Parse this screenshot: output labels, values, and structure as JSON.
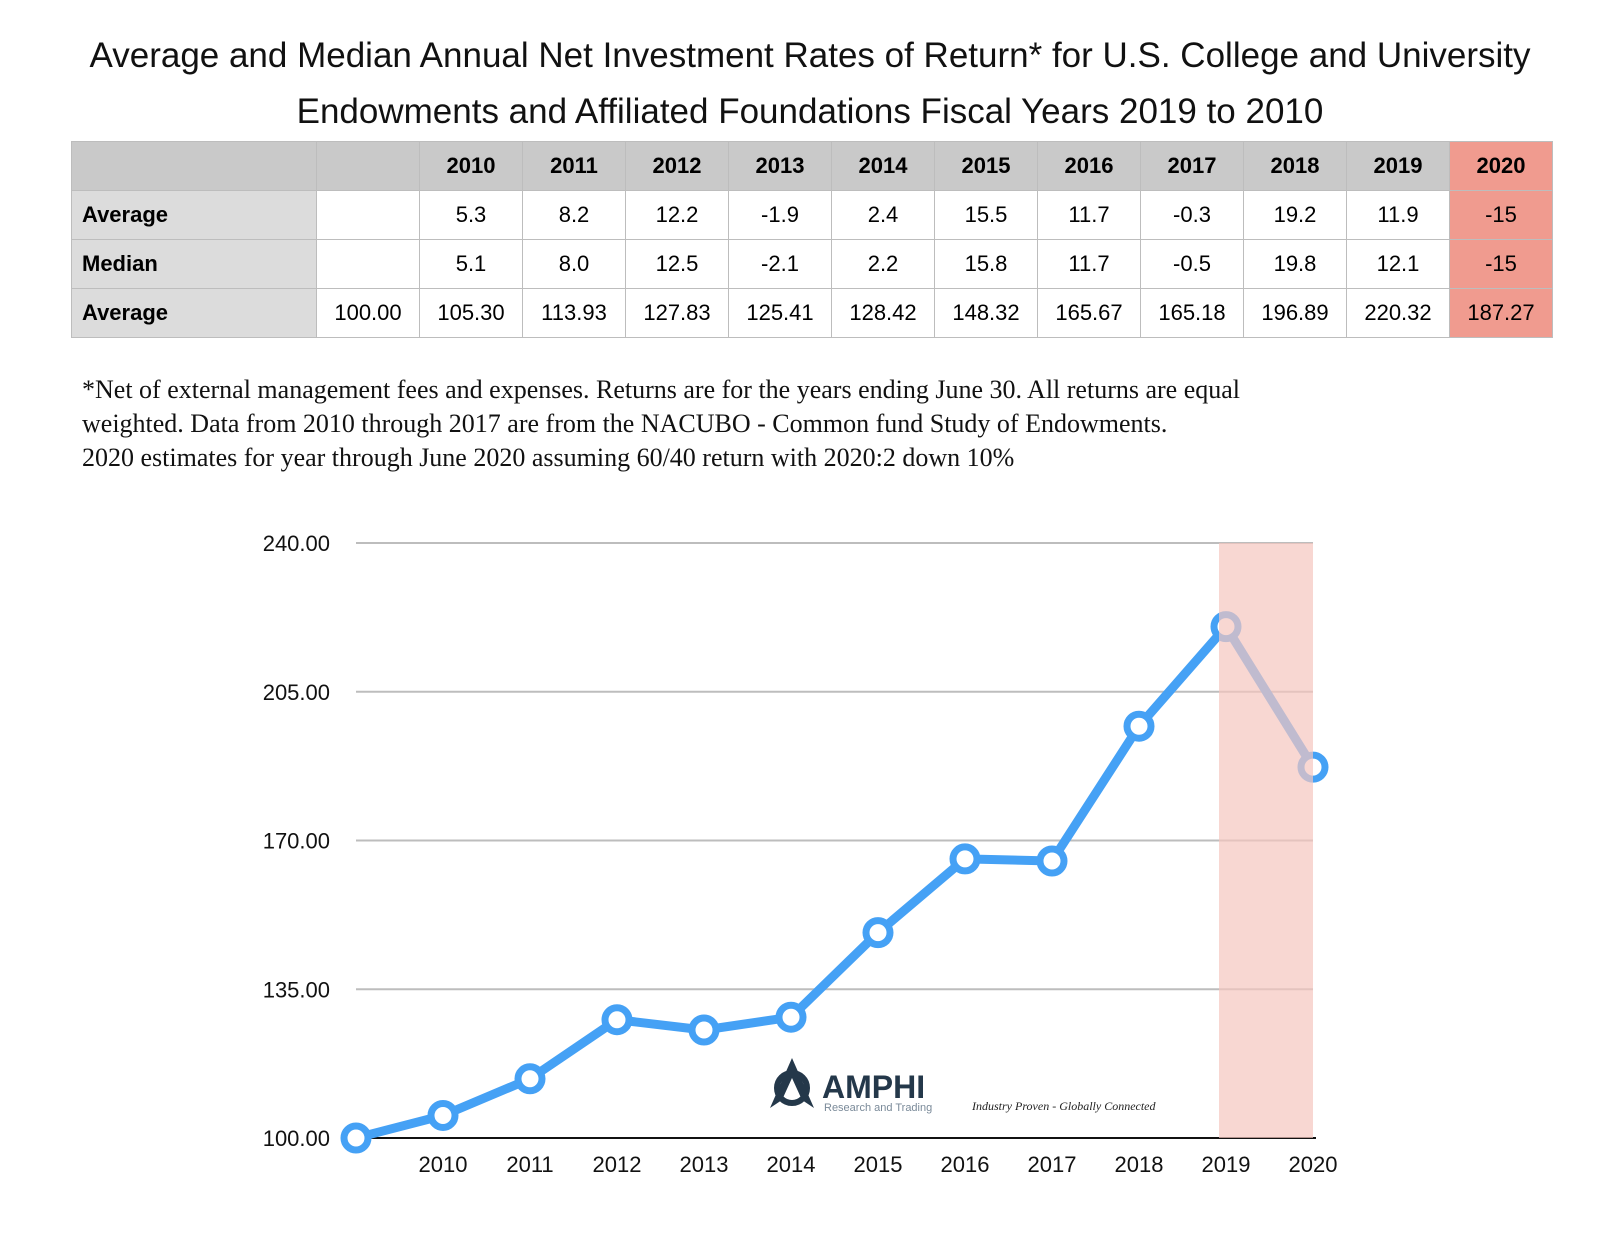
{
  "title": "Average and Median Annual Net Investment Rates of Return* for U.S. College and University Endowments and Affiliated Foundations Fiscal Years 2019 to 2010",
  "table": {
    "header": [
      "",
      "",
      "2010",
      "2011",
      "2012",
      "2013",
      "2014",
      "2015",
      "2016",
      "2017",
      "2018",
      "2019",
      "2020"
    ],
    "rows": [
      {
        "label": "Average",
        "cells": [
          "",
          "5.3",
          "8.2",
          "12.2",
          "-1.9",
          "2.4",
          "15.5",
          "11.7",
          "-0.3",
          "19.2",
          "11.9",
          "-15"
        ]
      },
      {
        "label": "Median",
        "cells": [
          "",
          "5.1",
          "8.0",
          "12.5",
          "-2.1",
          "2.2",
          "15.8",
          "11.7",
          "-0.5",
          "19.8",
          "12.1",
          "-15"
        ]
      },
      {
        "label": "Average",
        "cells": [
          "100.00",
          "105.30",
          "113.93",
          "127.83",
          "125.41",
          "128.42",
          "148.32",
          "165.67",
          "165.18",
          "196.89",
          "220.32",
          "187.27"
        ]
      }
    ],
    "highlight_color": "#f09b8f"
  },
  "notes": [
    "*Net of external management fees and expenses. Returns are for the years ending June 30. All returns are equal weighted. Data from 2010 through 2017 are from the NACUBO - Common fund Study of Endowments.",
    "2020 estimates for year through June 2020 assuming 60/40 return with 2020:2  down 10%"
  ],
  "chart_data": {
    "type": "line",
    "categories": [
      "",
      "2010",
      "2011",
      "2012",
      "2013",
      "2014",
      "2015",
      "2016",
      "2017",
      "2018",
      "2019",
      "2020"
    ],
    "values": [
      100.0,
      105.3,
      113.93,
      127.83,
      125.41,
      128.42,
      148.32,
      165.67,
      165.18,
      196.89,
      220.32,
      187.27
    ],
    "ylim": [
      100,
      240
    ],
    "yticks": [
      "100.00",
      "135.00",
      "170.00",
      "205.00",
      "240.00"
    ],
    "ytick_values": [
      100,
      135,
      170,
      205,
      240
    ],
    "grid": true,
    "line_color": "#45a1f5",
    "shaded_range": [
      "2019",
      "2020"
    ],
    "shade_color": "#f5c6bf"
  },
  "logo": {
    "name": "AMPHI",
    "sub": "Research and Trading",
    "tagline": "Industry Proven - Globally Connected"
  }
}
